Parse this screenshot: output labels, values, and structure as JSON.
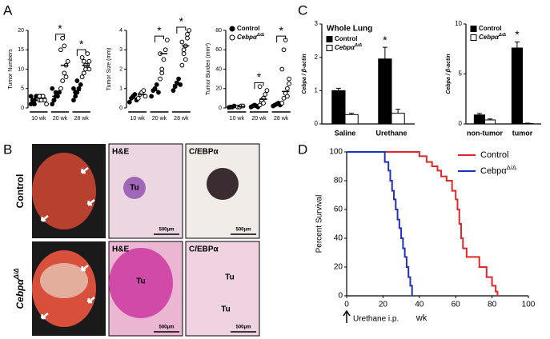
{
  "panel_labels": [
    "A",
    "B",
    "C",
    "D"
  ],
  "chart_data": [
    {
      "type": "strip",
      "ylabel": "Tumor Numbers",
      "ylim": [
        0,
        20
      ],
      "yticks": [
        0,
        5,
        10,
        15,
        20
      ],
      "categories": [
        "10 wk",
        "20 wk",
        "28 wk"
      ],
      "series": [
        {
          "color": "#000000",
          "values": [
            [
              1,
              2,
              2,
              3,
              3,
              3,
              2,
              1,
              3
            ],
            [
              1,
              2,
              3,
              3,
              4,
              5,
              2,
              4
            ],
            [
              2,
              3,
              4,
              5,
              6,
              5,
              4,
              7
            ]
          ],
          "medians": [
            2,
            3,
            4.5
          ]
        },
        {
          "color": "#ffffff",
          "values": [
            [
              2,
              3,
              3,
              2,
              1,
              3,
              2,
              3
            ],
            [
              5,
              7,
              9,
              11,
              12,
              15,
              18,
              16,
              8
            ],
            [
              8,
              9,
              10,
              11,
              12,
              13,
              12,
              11,
              14,
              10
            ]
          ],
          "medians": [
            2.5,
            11,
            11
          ]
        }
      ],
      "significance": [
        {
          "category": 1,
          "label": "*"
        },
        {
          "category": 2,
          "label": "*"
        }
      ]
    },
    {
      "type": "strip",
      "ylabel": "Tumor Size (mm)",
      "ylim": [
        0,
        4
      ],
      "yticks": [
        0,
        1,
        2,
        3,
        4
      ],
      "categories": [
        "10 wk",
        "20 wk",
        "28 wk"
      ],
      "series": [
        {
          "color": "#000000",
          "values": [
            [
              0.3,
              0.5,
              0.6,
              0.7,
              0.4
            ],
            [
              0.6,
              0.9,
              1.0,
              1.2,
              0.8
            ],
            [
              0.9,
              1.1,
              1.3,
              1.5,
              1.2
            ]
          ],
          "medians": [
            0.5,
            0.9,
            1.2
          ]
        },
        {
          "color": "#ffffff",
          "values": [
            [
              0.5,
              0.7,
              0.8,
              0.9,
              0.6
            ],
            [
              1.5,
              2.0,
              2.5,
              3.0,
              3.5,
              2.8,
              1.8
            ],
            [
              2.2,
              2.8,
              3.2,
              3.6,
              4.0,
              3.4,
              3.0,
              2.5,
              3.8
            ]
          ],
          "medians": [
            0.7,
            2.8,
            3.2
          ]
        }
      ],
      "significance": [
        {
          "category": 1,
          "label": "*"
        },
        {
          "category": 2,
          "label": "*"
        }
      ]
    },
    {
      "type": "strip",
      "ylabel": "Tumor Burden (mm³)",
      "ylim": [
        0,
        80
      ],
      "yticks": [
        0,
        20,
        40,
        60,
        80
      ],
      "categories": [
        "10 wk",
        "20 wk",
        "28 wk"
      ],
      "series": [
        {
          "name": "Control",
          "color": "#000000",
          "values": [
            [
              0.5,
              1,
              1,
              2
            ],
            [
              1,
              2,
              3,
              2,
              1
            ],
            [
              2,
              3,
              4,
              5,
              3
            ]
          ],
          "medians": [
            1,
            2,
            3
          ]
        },
        {
          "name": "Cebpα",
          "name_sup": "Δ/Δ",
          "color": "#ffffff",
          "values": [
            [
              1,
              1,
              2,
              2
            ],
            [
              3,
              6,
              10,
              14,
              18,
              22,
              8,
              5
            ],
            [
              5,
              10,
              15,
              20,
              25,
              40,
              60,
              70,
              12,
              30
            ]
          ],
          "medians": [
            1.5,
            9,
            17
          ]
        }
      ],
      "significance": [
        {
          "category": 1,
          "label": "*"
        },
        {
          "category": 2,
          "label": "*"
        }
      ]
    },
    {
      "type": "bar",
      "title": "Whole Lung",
      "ylabel": "Cebpa / β-actin",
      "ylim": [
        0,
        3
      ],
      "yticks": [
        0,
        1,
        2,
        3
      ],
      "categories": [
        "Saline",
        "Urethane"
      ],
      "series": [
        {
          "name": "Control",
          "color": "#000000",
          "values": [
            1.0,
            1.95
          ],
          "errors": [
            0.07,
            0.35
          ]
        },
        {
          "name": "Cebpα",
          "name_sup": "Δ/Δ",
          "color": "#ffffff",
          "values": [
            0.28,
            0.32
          ],
          "errors": [
            0.04,
            0.12
          ]
        }
      ],
      "significance": [
        {
          "category": 1,
          "label": "*"
        }
      ]
    },
    {
      "type": "bar",
      "ylabel": "Cebpa / β-actin",
      "ylim": [
        0,
        10
      ],
      "yticks": [
        0,
        5,
        10
      ],
      "categories": [
        "non-tumor",
        "tumor"
      ],
      "series": [
        {
          "name": "Control",
          "color": "#000000",
          "values": [
            0.9,
            7.6
          ],
          "errors": [
            0.15,
            0.6
          ]
        },
        {
          "name": "Cebpα",
          "name_sup": "Δ/Δ",
          "color": "#ffffff",
          "values": [
            0.4,
            0.05
          ],
          "errors": [
            0.1,
            0.03
          ]
        }
      ],
      "significance": [
        {
          "category": 1,
          "label": "*"
        }
      ]
    },
    {
      "type": "line",
      "ylabel": "Percent Survival",
      "xlabel": "wk",
      "annotation": "Urethane i.p.",
      "xlim": [
        0,
        100
      ],
      "xticks": [
        0,
        20,
        40,
        60,
        80,
        100
      ],
      "ylim": [
        0,
        100
      ],
      "yticks": [
        0,
        20,
        40,
        60,
        80,
        100
      ],
      "series": [
        {
          "name": "Control",
          "color": "#e02828",
          "x": [
            0,
            40,
            40,
            44,
            44,
            47,
            47,
            50,
            50,
            52,
            52,
            55,
            55,
            58,
            58,
            60,
            60,
            61,
            61,
            62,
            62,
            63,
            63,
            64,
            64,
            66,
            66,
            73,
            73,
            77,
            77,
            80,
            80,
            82,
            82,
            83,
            83
          ],
          "values": [
            100,
            100,
            97,
            97,
            93,
            93,
            90,
            90,
            87,
            87,
            83,
            83,
            80,
            80,
            73,
            73,
            67,
            67,
            60,
            60,
            50,
            50,
            40,
            40,
            33,
            33,
            27,
            27,
            20,
            20,
            13,
            13,
            7,
            7,
            3,
            3,
            0
          ]
        },
        {
          "name": "Cebpα",
          "name_sup": "Δ/Δ",
          "color": "#2030c0",
          "x": [
            0,
            21,
            21,
            23,
            23,
            24,
            24,
            25,
            25,
            26,
            26,
            27,
            27,
            28,
            28,
            29,
            29,
            30,
            30,
            31,
            31,
            32,
            32,
            33,
            33,
            34,
            34,
            35,
            35,
            36,
            36
          ],
          "values": [
            100,
            100,
            93,
            93,
            87,
            87,
            80,
            80,
            73,
            73,
            67,
            67,
            60,
            60,
            53,
            53,
            47,
            47,
            40,
            40,
            33,
            33,
            27,
            27,
            20,
            20,
            13,
            13,
            7,
            7,
            0
          ]
        }
      ]
    }
  ],
  "micrographs": {
    "rows": [
      {
        "label": "Control",
        "panels": [
          {
            "header": "H&E",
            "tumor_labels": [
              "Tu"
            ],
            "scale": "500μm"
          },
          {
            "header": "C/EBPα",
            "scale": "500μm"
          }
        ]
      },
      {
        "label": "Cebpα",
        "label_sup": "Δ/Δ",
        "panels": [
          {
            "header": "H&E",
            "tumor_labels": [
              "Tu"
            ],
            "scale": "500μm"
          },
          {
            "header": "C/EBPα",
            "tumor_labels": [
              "Tu",
              "Tu"
            ],
            "scale": "500μm"
          }
        ]
      }
    ]
  }
}
